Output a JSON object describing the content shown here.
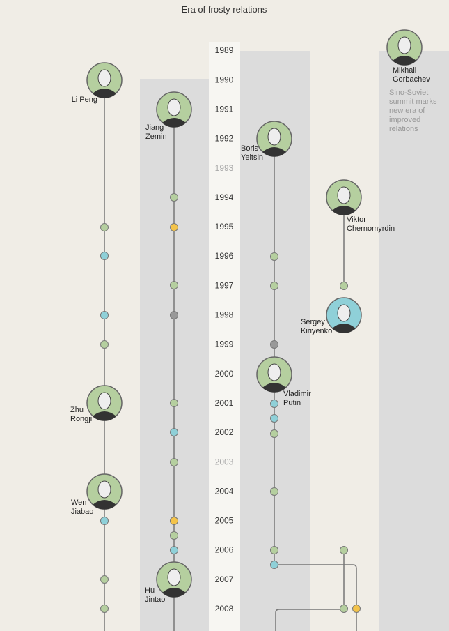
{
  "title": "Era of frosty relations",
  "years": [
    {
      "label": "1989"
    },
    {
      "label": "1990"
    },
    {
      "label": "1991"
    },
    {
      "label": "1992"
    },
    {
      "label": "1993",
      "faded": true
    },
    {
      "label": "1994"
    },
    {
      "label": "1995"
    },
    {
      "label": "1996"
    },
    {
      "label": "1997"
    },
    {
      "label": "1998"
    },
    {
      "label": "1999"
    },
    {
      "label": "2000"
    },
    {
      "label": "2001"
    },
    {
      "label": "2002"
    },
    {
      "label": "2003",
      "faded": true
    },
    {
      "label": "2004"
    },
    {
      "label": "2005"
    },
    {
      "label": "2006"
    },
    {
      "label": "2007"
    },
    {
      "label": "2008"
    }
  ],
  "leaders": [
    {
      "lines": [
        "Li Peng"
      ]
    },
    {
      "lines": [
        "Jiang",
        "Zemin"
      ]
    },
    {
      "lines": [
        "Boris",
        "Yeltsin"
      ]
    },
    {
      "lines": [
        "Viktor",
        "Chernomyrdin"
      ]
    },
    {
      "lines": [
        "Sergey",
        "Kiriyenko"
      ]
    },
    {
      "lines": [
        "Vladimir",
        "Putin"
      ]
    },
    {
      "lines": [
        "Zhu",
        "Rongji"
      ]
    },
    {
      "lines": [
        "Wen",
        "Jiabao"
      ]
    },
    {
      "lines": [
        "Hu",
        "Jintao"
      ]
    },
    {
      "lines": [
        "Mikhail",
        "Gorbachev"
      ]
    }
  ],
  "annotation": {
    "lines": [
      "Sino-Soviet",
      "summit marks",
      "new era of",
      "improved",
      "relations"
    ]
  }
}
